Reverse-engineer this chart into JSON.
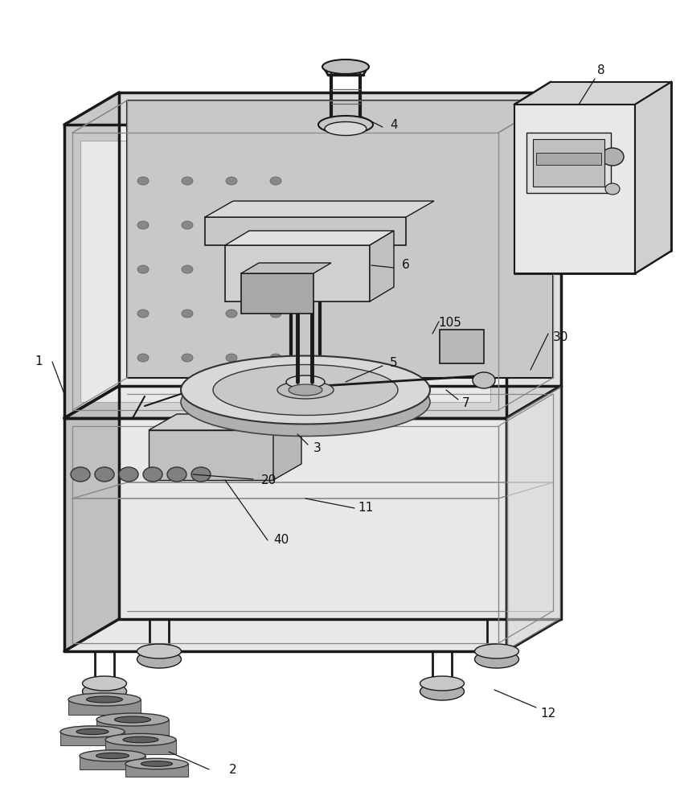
{
  "bg_color": "#ffffff",
  "lc": "#1a1a1a",
  "frame_fill_front": "#e8e8e8",
  "frame_fill_top": "#d0d0d0",
  "frame_fill_left": "#c0c0c0",
  "frame_fill_right": "#d8d8d8",
  "inner_fill": "#f2f2f2",
  "back_wall_fill": "#c8c8c8",
  "dark_fill": "#aaaaaa",
  "label_fs": 11
}
